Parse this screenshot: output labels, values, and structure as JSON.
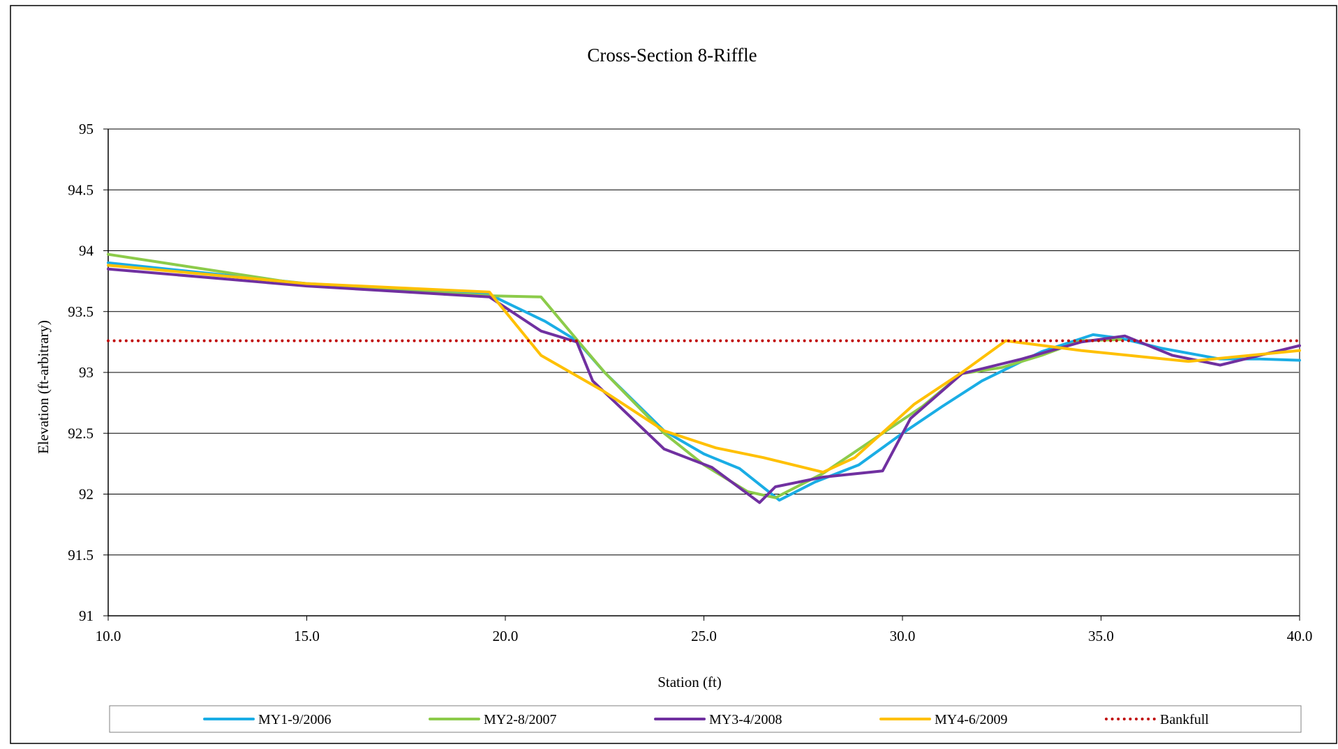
{
  "chart_data": {
    "type": "line",
    "title": "Cross-Section 8-Riffle",
    "xlabel": "Station (ft)",
    "ylabel": "Elevation (ft-arbitrary)",
    "xlim": [
      10,
      40
    ],
    "ylim": [
      91,
      95
    ],
    "x_ticks": [
      "10.0",
      "15.0",
      "20.0",
      "25.0",
      "30.0",
      "35.0",
      "40.0"
    ],
    "x_tick_values": [
      10,
      15,
      20,
      25,
      30,
      35,
      40
    ],
    "y_ticks": [
      "91",
      "91.5",
      "92",
      "92.5",
      "93",
      "93.5",
      "94",
      "94.5",
      "95"
    ],
    "y_tick_values": [
      91,
      91.5,
      92,
      92.5,
      93,
      93.5,
      94,
      94.5,
      95
    ],
    "grid": "horizontal",
    "legend_position": "bottom",
    "series": [
      {
        "name": "MY1-9/2006",
        "color": "#1AADE5",
        "style": "solid",
        "points": [
          [
            10,
            93.9
          ],
          [
            15,
            93.73
          ],
          [
            19.6,
            93.64
          ],
          [
            21,
            93.42
          ],
          [
            21.8,
            93.26
          ],
          [
            22.5,
            93.0
          ],
          [
            24,
            92.52
          ],
          [
            25,
            92.33
          ],
          [
            25.9,
            92.21
          ],
          [
            26.9,
            91.95
          ],
          [
            27.8,
            92.1
          ],
          [
            28.9,
            92.24
          ],
          [
            30,
            92.5
          ],
          [
            31,
            92.72
          ],
          [
            32,
            92.93
          ],
          [
            33.5,
            93.17
          ],
          [
            34.8,
            93.31
          ],
          [
            35.5,
            93.28
          ],
          [
            36.5,
            93.2
          ],
          [
            38,
            93.11
          ],
          [
            39,
            93.11
          ],
          [
            40,
            93.1
          ]
        ]
      },
      {
        "name": "MY2-8/2007",
        "color": "#8CCB4A",
        "style": "solid",
        "points": [
          [
            10,
            93.97
          ],
          [
            15,
            93.72
          ],
          [
            19.6,
            93.63
          ],
          [
            20.9,
            93.62
          ],
          [
            21.8,
            93.27
          ],
          [
            22.5,
            93.0
          ],
          [
            24,
            92.5
          ],
          [
            25,
            92.24
          ],
          [
            26.1,
            92.02
          ],
          [
            26.8,
            91.97
          ],
          [
            28,
            92.17
          ],
          [
            29.5,
            92.5
          ],
          [
            30.5,
            92.72
          ],
          [
            31.5,
            92.99
          ],
          [
            32.5,
            93.04
          ],
          [
            33.5,
            93.14
          ],
          [
            34.5,
            93.26
          ],
          [
            35.5,
            93.27
          ]
        ]
      },
      {
        "name": "MY3-4/2008",
        "color": "#7030A0",
        "style": "solid",
        "points": [
          [
            10,
            93.85
          ],
          [
            15,
            93.71
          ],
          [
            19.6,
            93.62
          ],
          [
            20.9,
            93.34
          ],
          [
            21.8,
            93.25
          ],
          [
            22.2,
            92.93
          ],
          [
            24,
            92.37
          ],
          [
            25.2,
            92.22
          ],
          [
            26.4,
            91.93
          ],
          [
            26.8,
            92.06
          ],
          [
            28,
            92.14
          ],
          [
            29.5,
            92.19
          ],
          [
            30.2,
            92.62
          ],
          [
            31.5,
            92.99
          ],
          [
            33,
            93.11
          ],
          [
            34.5,
            93.25
          ],
          [
            35.6,
            93.3
          ],
          [
            36.8,
            93.14
          ],
          [
            38,
            93.06
          ],
          [
            40,
            93.22
          ]
        ]
      },
      {
        "name": "MY4-6/2009",
        "color": "#FFC000",
        "style": "solid",
        "points": [
          [
            10,
            93.88
          ],
          [
            15,
            93.73
          ],
          [
            19.6,
            93.66
          ],
          [
            20.9,
            93.14
          ],
          [
            22.5,
            92.84
          ],
          [
            24,
            92.52
          ],
          [
            25.3,
            92.38
          ],
          [
            26.5,
            92.3
          ],
          [
            28,
            92.18
          ],
          [
            28.8,
            92.3
          ],
          [
            30.3,
            92.74
          ],
          [
            31.5,
            93.0
          ],
          [
            32.6,
            93.26
          ],
          [
            34.5,
            93.18
          ],
          [
            37.2,
            93.09
          ],
          [
            40,
            93.18
          ]
        ]
      },
      {
        "name": "Bankfull",
        "color": "#C00000",
        "style": "dotted",
        "points": [
          [
            10,
            93.26
          ],
          [
            40,
            93.26
          ]
        ]
      }
    ]
  }
}
